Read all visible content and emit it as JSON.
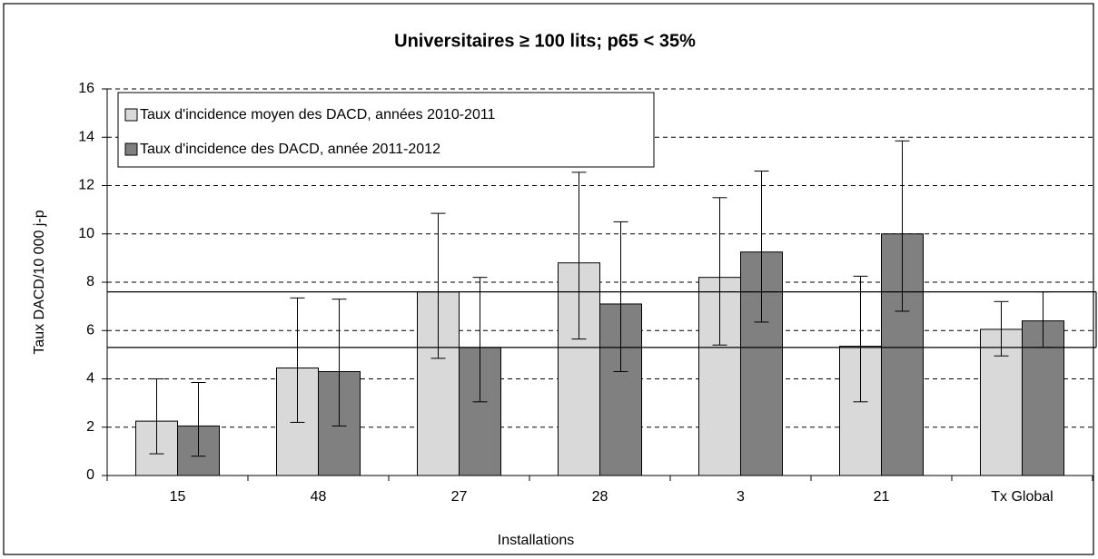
{
  "chart_data": {
    "type": "bar",
    "title": "Universitaires ≥ 100 lits; p65 < 35%",
    "x_label": "Installations",
    "y_label": "Taux DACD/10 000 j-p",
    "categories": [
      "15",
      "48",
      "27",
      "28",
      "3",
      "21",
      "Tx Global"
    ],
    "series": [
      {
        "name": "Taux d'incidence moyen des DACD, années 2010-2011",
        "color": "#d9d9d9",
        "values": [
          2.25,
          4.45,
          7.6,
          8.8,
          8.2,
          5.35,
          6.05
        ],
        "lower": [
          0.9,
          2.2,
          4.85,
          5.65,
          5.4,
          3.05,
          4.95
        ],
        "upper": [
          4.0,
          7.35,
          10.85,
          12.55,
          11.5,
          8.25,
          7.2
        ]
      },
      {
        "name": "Taux d'incidence des DACD, année 2011-2012",
        "color": "#808080",
        "values": [
          2.05,
          4.3,
          5.3,
          7.1,
          9.25,
          10.0,
          6.4
        ],
        "lower": [
          0.8,
          2.05,
          3.05,
          4.3,
          6.35,
          6.8,
          5.3
        ],
        "upper": [
          3.85,
          7.3,
          8.2,
          10.5,
          12.6,
          13.85,
          7.6
        ]
      }
    ],
    "reference_band": [
      5.3,
      7.6
    ],
    "ylim": [
      0,
      16
    ],
    "yticks": [
      0,
      2,
      4,
      6,
      8,
      10,
      12,
      14,
      16
    ],
    "grid": true,
    "legend": "top-left"
  }
}
